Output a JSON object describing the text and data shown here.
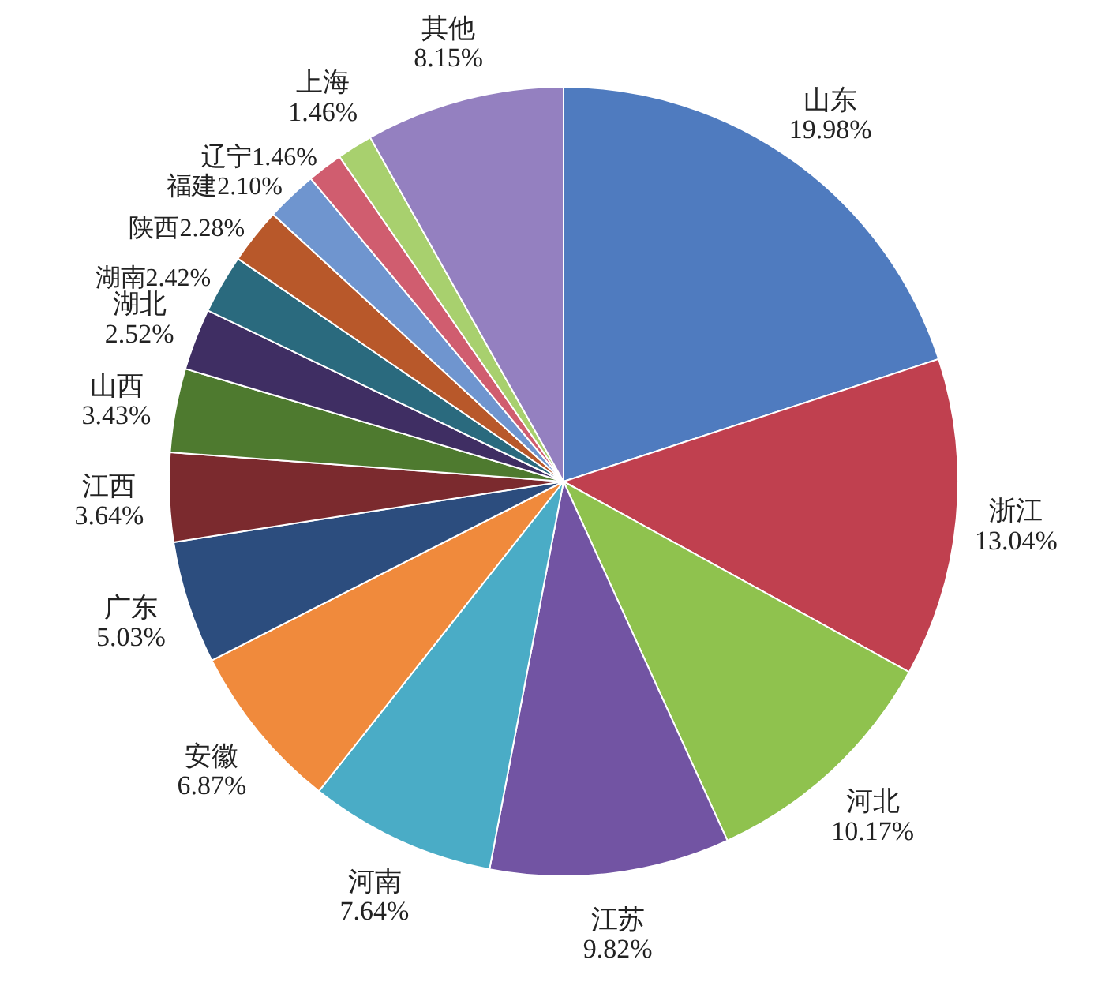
{
  "chart_data": {
    "type": "pie",
    "categories": [
      "山东",
      "浙江",
      "河北",
      "江苏",
      "河南",
      "安徽",
      "广东",
      "江西",
      "山西",
      "湖北",
      "湖南",
      "陕西",
      "福建",
      "辽宁",
      "上海",
      "其他"
    ],
    "values": [
      19.98,
      13.04,
      10.17,
      9.82,
      7.64,
      6.87,
      5.03,
      3.64,
      3.43,
      2.52,
      2.42,
      2.28,
      2.1,
      1.46,
      1.46,
      8.15
    ],
    "value_labels": [
      "19.98%",
      "13.04%",
      "10.17%",
      "9.82%",
      "7.64%",
      "6.87%",
      "5.03%",
      "3.64%",
      "3.43%",
      "2.52%",
      "2.42%",
      "2.28%",
      "2.10%",
      "1.46%",
      "1.46%",
      "8.15%"
    ],
    "colors": [
      "#4f7bbf",
      "#c0404f",
      "#8fc24e",
      "#7254a3",
      "#4aacc6",
      "#f08a3c",
      "#2c4d7e",
      "#7b2a2e",
      "#4e7a2f",
      "#3f2e63",
      "#2a6a7e",
      "#b8582a",
      "#6f95cf",
      "#d05d6f",
      "#a8d06e",
      "#9480c0"
    ]
  }
}
